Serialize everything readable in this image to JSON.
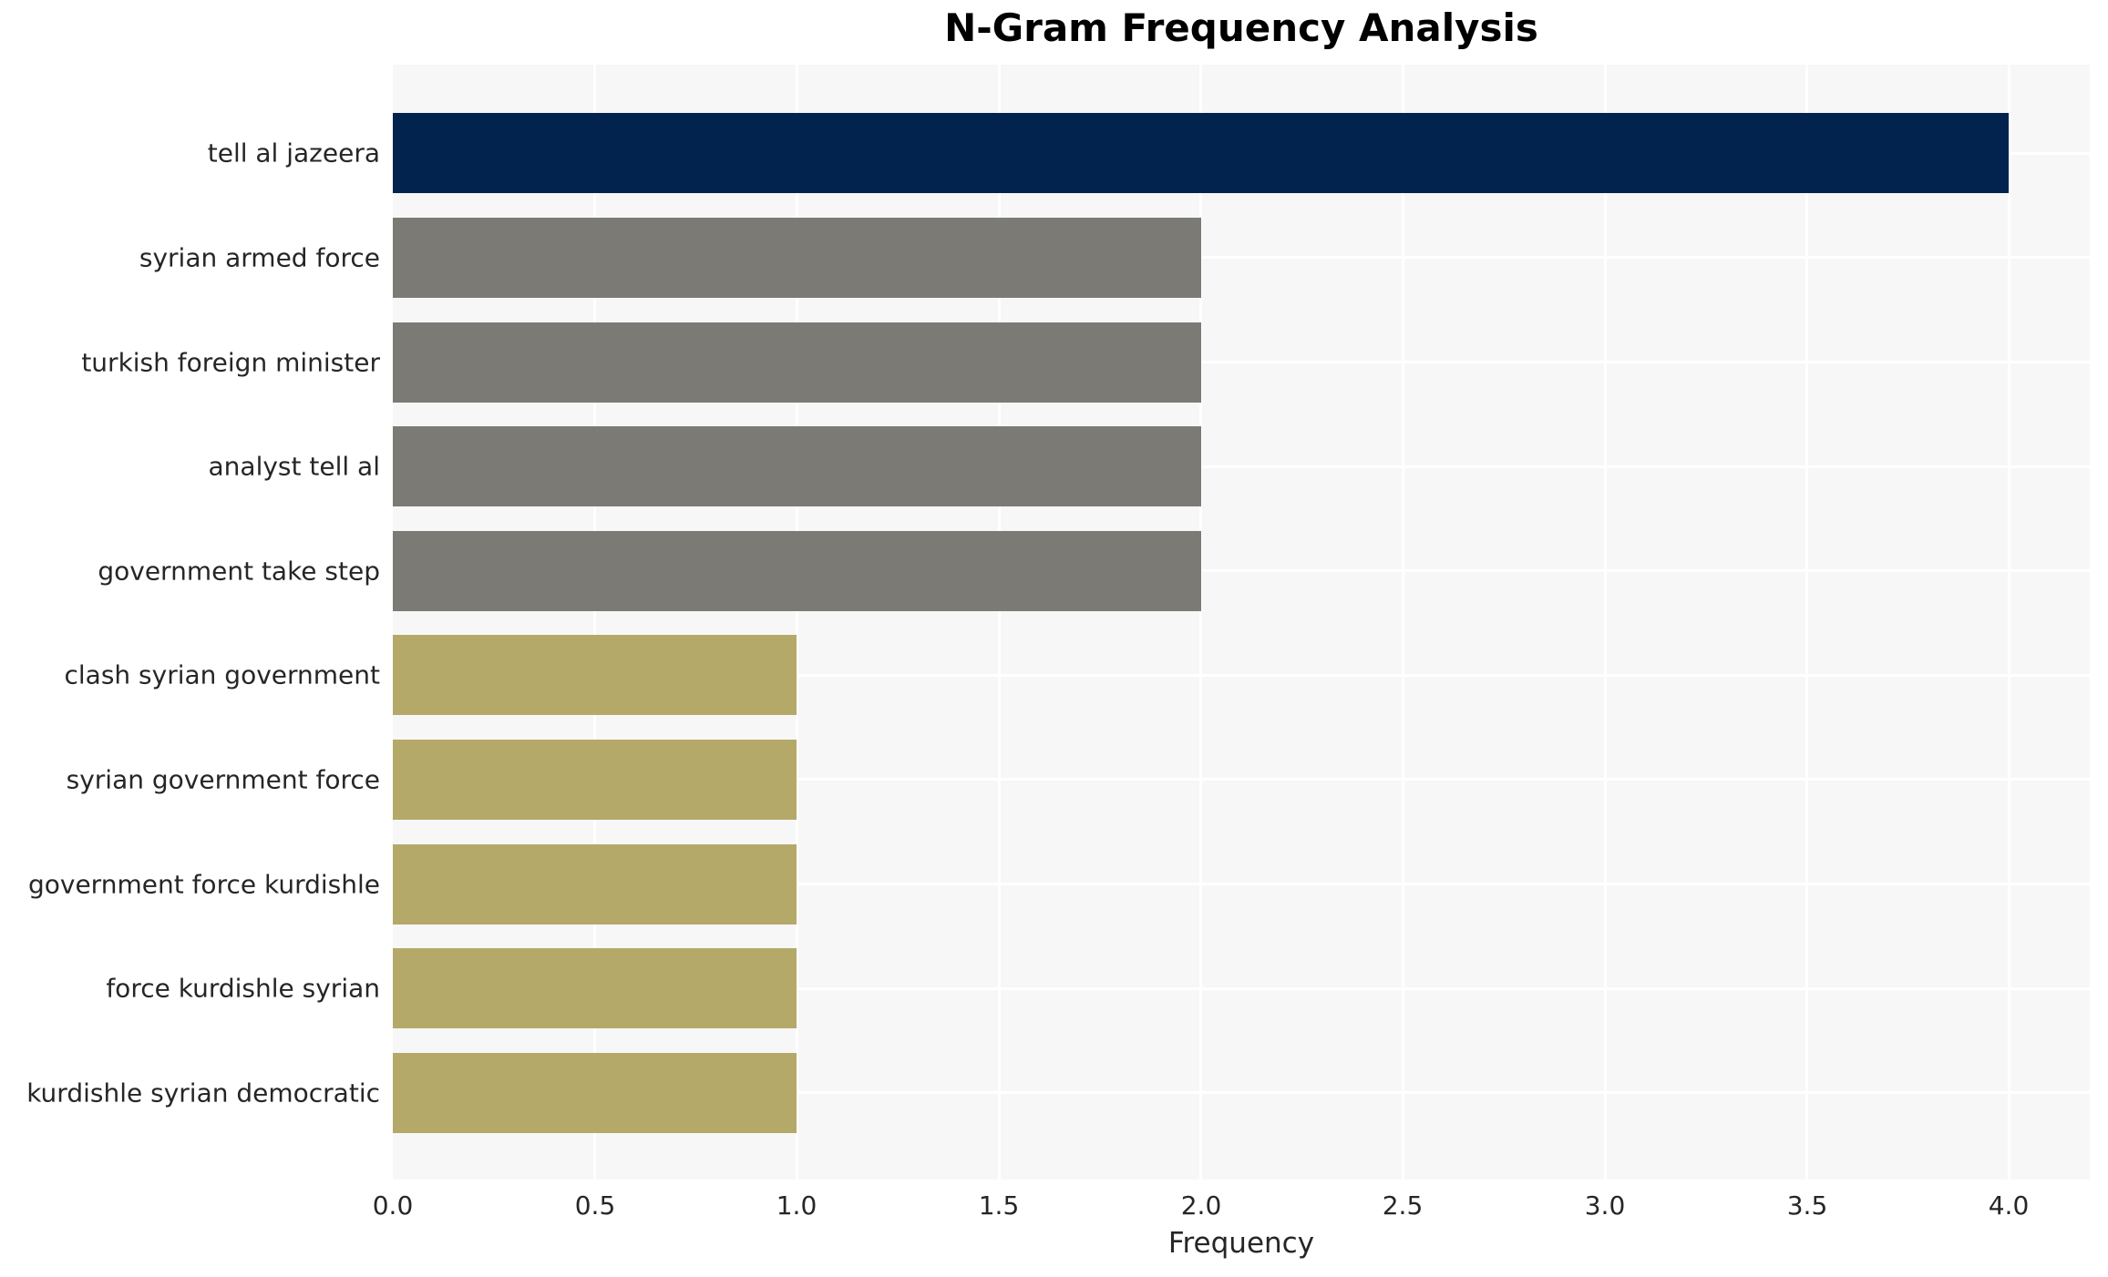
{
  "chart": {
    "title": "N-Gram Frequency Analysis",
    "xlabel": "Frequency"
  },
  "chart_data": {
    "type": "bar",
    "orientation": "horizontal",
    "title": "N-Gram Frequency Analysis",
    "xlabel": "Frequency",
    "ylabel": "",
    "categories": [
      "tell al jazeera",
      "syrian armed force",
      "turkish foreign minister",
      "analyst tell al",
      "government take step",
      "clash syrian government",
      "syrian government force",
      "government force kurdishle",
      "force kurdishle syrian",
      "kurdishle syrian democratic"
    ],
    "values": [
      4,
      2,
      2,
      2,
      2,
      1,
      1,
      1,
      1,
      1
    ],
    "bar_colors": [
      "#02234d",
      "#7b7a74",
      "#7b7a74",
      "#7b7a74",
      "#7b7a74",
      "#b5a96a",
      "#b5a96a",
      "#b5a96a",
      "#b5a96a",
      "#b5a96a"
    ],
    "xlim": [
      0,
      4.2
    ],
    "xticks": [
      0.0,
      0.5,
      1.0,
      1.5,
      2.0,
      2.5,
      3.0,
      3.5,
      4.0
    ],
    "xtick_labels": [
      "0.0",
      "0.5",
      "1.0",
      "1.5",
      "2.0",
      "2.5",
      "3.0",
      "3.5",
      "4.0"
    ],
    "grid": true,
    "legend": false,
    "colors": {
      "figure_background": "#ffffff",
      "plot_background": "#f7f7f7",
      "grid": "#ffffff",
      "text": "#262626",
      "title_text": "#000000"
    }
  }
}
